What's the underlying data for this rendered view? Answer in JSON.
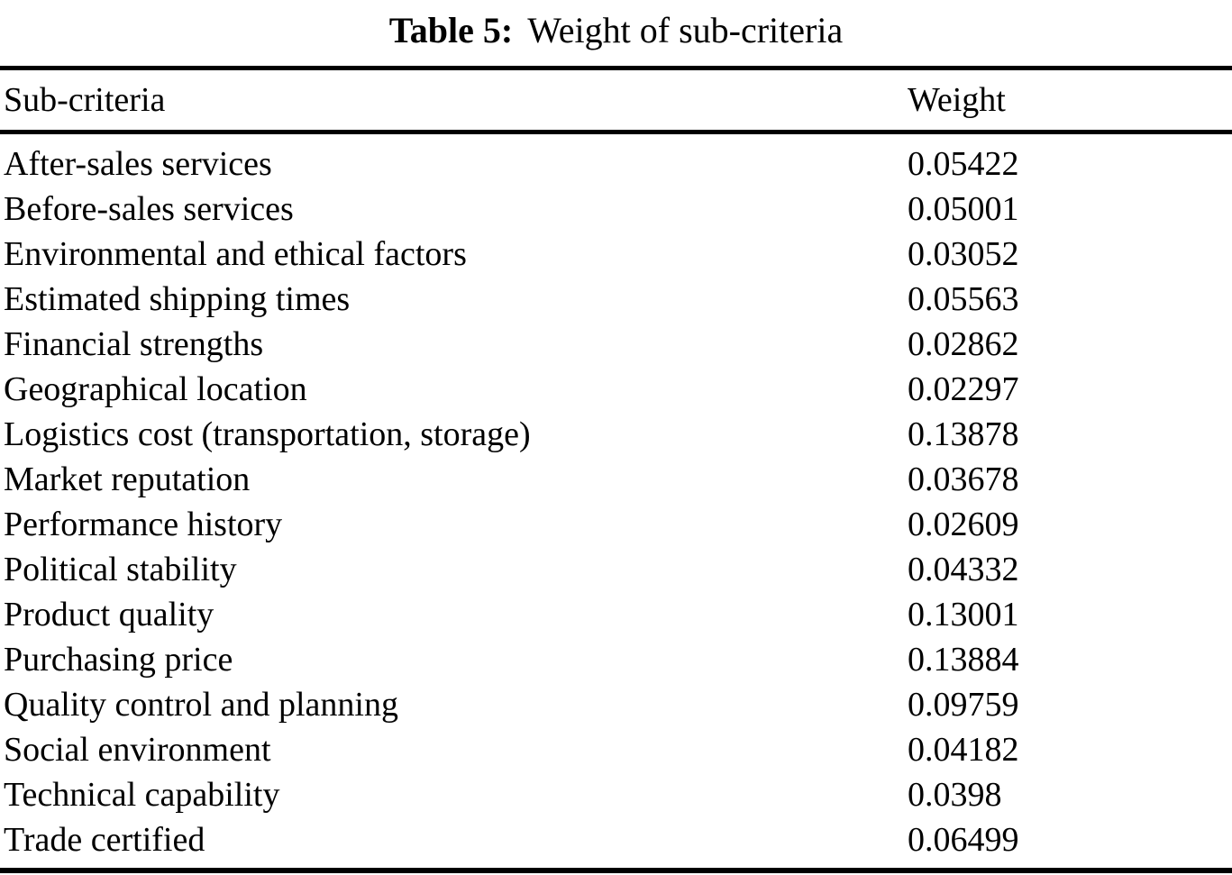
{
  "caption": {
    "number": "Table 5:",
    "title": "Weight of sub-criteria"
  },
  "table": {
    "header": {
      "subcriteria": "Sub-criteria",
      "weight": "Weight"
    },
    "rows": [
      {
        "name": "After-sales services",
        "weight": "0.05422"
      },
      {
        "name": "Before-sales services",
        "weight": "0.05001"
      },
      {
        "name": "Environmental and ethical factors",
        "weight": "0.03052"
      },
      {
        "name": "Estimated shipping times",
        "weight": "0.05563"
      },
      {
        "name": "Financial strengths",
        "weight": "0.02862"
      },
      {
        "name": "Geographical location",
        "weight": "0.02297"
      },
      {
        "name": "Logistics cost (transportation, storage)",
        "weight": "0.13878"
      },
      {
        "name": "Market reputation",
        "weight": "0.03678"
      },
      {
        "name": "Performance history",
        "weight": "0.02609"
      },
      {
        "name": "Political stability",
        "weight": "0.04332"
      },
      {
        "name": "Product quality",
        "weight": "0.13001"
      },
      {
        "name": "Purchasing price",
        "weight": "0.13884"
      },
      {
        "name": "Quality control and planning",
        "weight": "0.09759"
      },
      {
        "name": "Social environment",
        "weight": "0.04182"
      },
      {
        "name": "Technical capability",
        "weight": "0.0398"
      },
      {
        "name": "Trade certified",
        "weight": "0.06499"
      }
    ]
  },
  "colors": {
    "text": "#000000",
    "background": "#ffffff",
    "rule": "#000000"
  }
}
